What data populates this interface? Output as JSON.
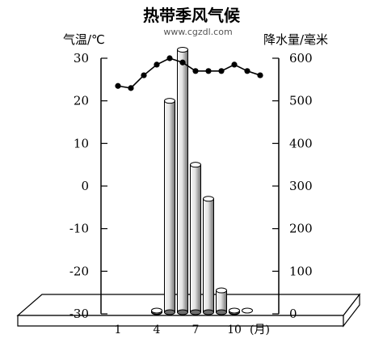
{
  "chart_data": {
    "type": "bar+line",
    "title": "热带季风气候",
    "watermark": "www.cgzdl.com",
    "ylabel_left": "气温/℃",
    "ylabel_right": "降水量/毫米",
    "xlabel_suffix": "(月)",
    "x_tick_labels": [
      "1",
      "4",
      "7",
      "10"
    ],
    "months": [
      1,
      2,
      3,
      4,
      5,
      6,
      7,
      8,
      9,
      10,
      11,
      12
    ],
    "left_ticks": [
      "30",
      "20",
      "10",
      "0",
      "-10",
      "-20",
      "-30"
    ],
    "right_ticks": [
      "600",
      "500",
      "400",
      "300",
      "200",
      "100",
      "0"
    ],
    "temperature_ylim": [
      -30,
      30
    ],
    "precipitation_ylim": [
      0,
      600
    ],
    "series": [
      {
        "name": "气温",
        "type": "line",
        "axis": "left",
        "values": [
          23.5,
          23,
          26,
          28.5,
          30,
          29,
          27,
          27,
          27,
          28.5,
          27,
          26
        ]
      },
      {
        "name": "降水量",
        "type": "bar",
        "axis": "right",
        "values": [
          0,
          0,
          0,
          5,
          500,
          620,
          350,
          270,
          55,
          5,
          0,
          0
        ]
      }
    ],
    "colors": {
      "bar_light": "#f5f5f5",
      "bar_dark": "#6e6e6e",
      "line": "#000000"
    }
  }
}
